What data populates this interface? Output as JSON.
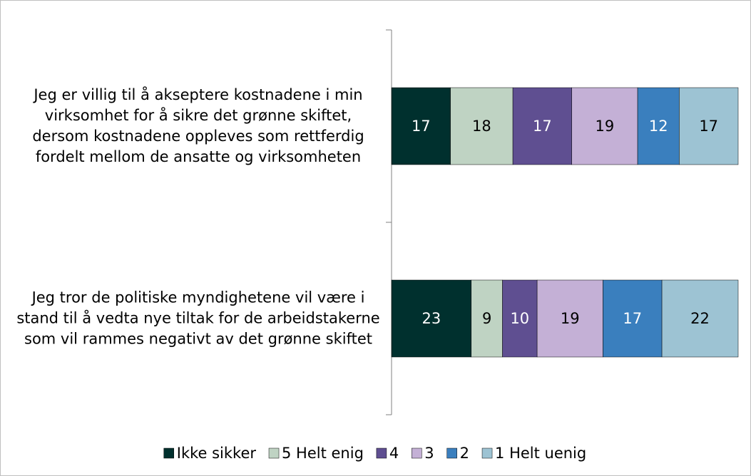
{
  "chart_data": {
    "type": "stacked_bar",
    "orientation": "horizontal",
    "categories": [
      "Jeg er villig til å akseptere kostnadene i min virksomhet for å sikre det grønne skiftet, dersom kostnadene oppleves som rettferdig fordelt mellom de ansatte og virksomheten",
      "Jeg tror de politiske myndighetene vil være i stand til å vedta nye tiltak for de arbeidstakerne som vil rammes negativt av det grønne skiftet"
    ],
    "series": [
      {
        "name": "Ikke sikker",
        "color": "#00302e",
        "label_color": "#ffffff",
        "values": [
          17,
          23
        ]
      },
      {
        "name": "5 Helt enig",
        "color": "#bfd3c3",
        "label_color": "#000000",
        "values": [
          18,
          9
        ]
      },
      {
        "name": "4",
        "color": "#5f4f91",
        "label_color": "#ffffff",
        "values": [
          17,
          10
        ]
      },
      {
        "name": "3",
        "color": "#c4b0d6",
        "label_color": "#000000",
        "values": [
          19,
          19
        ]
      },
      {
        "name": "2",
        "color": "#3a7fbe",
        "label_color": "#ffffff",
        "values": [
          12,
          17
        ]
      },
      {
        "name": "1 Helt uenig",
        "color": "#9dc3d3",
        "label_color": "#000000",
        "values": [
          17,
          22
        ]
      }
    ],
    "xlim": [
      0,
      100
    ],
    "legend": "bottom"
  }
}
